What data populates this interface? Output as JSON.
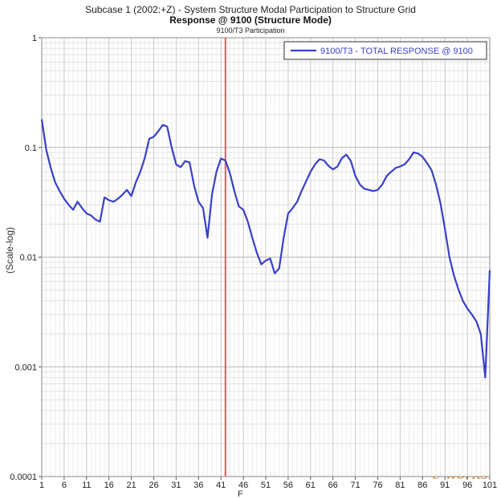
{
  "header": {
    "subtitle_top": "Subcase 1 (2002:+Z) - System Structure Modal Participation to Structure Grid",
    "title": "Response @ 9100 (Structure Mode)",
    "subtitle_bottom": "9100/T3 Participation"
  },
  "axes": {
    "ylabel_fragment": "(Scale-log)",
    "xlabel_fragment": "F",
    "watermark": "e-works"
  },
  "chart_data": {
    "type": "line",
    "title": "Response @ 9100 (Structure Mode)",
    "ylog": true,
    "ylim": [
      0.0001,
      1
    ],
    "xlim": [
      1,
      101
    ],
    "grid": true,
    "legend_placement": "top-right",
    "x_ticks": [
      1,
      6,
      11,
      16,
      21,
      26,
      31,
      36,
      41,
      46,
      51,
      56,
      61,
      66,
      71,
      76,
      81,
      86,
      91,
      96,
      101
    ],
    "x_tick_labels": [
      "1",
      "6",
      "11",
      "16",
      "21",
      "26",
      "31",
      "36",
      "41",
      "46",
      "51",
      "56",
      "61",
      "66",
      "71",
      "76",
      "81",
      "86",
      "91",
      "96",
      "101"
    ],
    "y_ticks": [
      0.0001,
      0.001,
      0.01,
      0.1,
      1
    ],
    "y_tick_labels": [
      "0.0001",
      "0.001",
      "0.01",
      "0.1",
      "1"
    ],
    "marker_x": 42,
    "marker_color": "#e05a5a",
    "series": [
      {
        "name": "9100/T3 - TOTAL RESPONSE @ 9100",
        "color": "#3a3fc9",
        "x": [
          1,
          2,
          3,
          4,
          5,
          6,
          7,
          8,
          9,
          10,
          11,
          12,
          13,
          14,
          15,
          16,
          17,
          18,
          19,
          20,
          21,
          22,
          23,
          24,
          25,
          26,
          27,
          28,
          29,
          30,
          31,
          32,
          33,
          34,
          35,
          36,
          37,
          38,
          39,
          40,
          41,
          42,
          43,
          44,
          45,
          46,
          47,
          48,
          49,
          50,
          51,
          52,
          53,
          54,
          55,
          56,
          57,
          58,
          59,
          60,
          61,
          62,
          63,
          64,
          65,
          66,
          67,
          68,
          69,
          70,
          71,
          72,
          73,
          74,
          75,
          76,
          77,
          78,
          79,
          80,
          81,
          82,
          83,
          84,
          85,
          86,
          87,
          88,
          89,
          90,
          91,
          92,
          93,
          94,
          95,
          96,
          97,
          98,
          99,
          100,
          101
        ],
        "values": [
          0.18,
          0.095,
          0.065,
          0.048,
          0.04,
          0.034,
          0.03,
          0.027,
          0.032,
          0.028,
          0.025,
          0.024,
          0.022,
          0.021,
          0.035,
          0.033,
          0.032,
          0.034,
          0.037,
          0.041,
          0.036,
          0.048,
          0.06,
          0.08,
          0.12,
          0.125,
          0.14,
          0.16,
          0.155,
          0.1,
          0.07,
          0.066,
          0.075,
          0.073,
          0.045,
          0.032,
          0.028,
          0.015,
          0.037,
          0.06,
          0.079,
          0.076,
          0.058,
          0.04,
          0.029,
          0.027,
          0.021,
          0.015,
          0.011,
          0.0086,
          0.0093,
          0.0097,
          0.0071,
          0.0079,
          0.015,
          0.025,
          0.028,
          0.032,
          0.04,
          0.049,
          0.06,
          0.07,
          0.078,
          0.076,
          0.068,
          0.063,
          0.067,
          0.08,
          0.086,
          0.075,
          0.055,
          0.046,
          0.042,
          0.041,
          0.04,
          0.041,
          0.046,
          0.055,
          0.06,
          0.065,
          0.067,
          0.07,
          0.078,
          0.09,
          0.088,
          0.082,
          0.072,
          0.062,
          0.046,
          0.031,
          0.018,
          0.01,
          0.0068,
          0.0051,
          0.004,
          0.0034,
          0.003,
          0.0026,
          0.002,
          0.0008,
          0.0076
        ]
      }
    ]
  }
}
